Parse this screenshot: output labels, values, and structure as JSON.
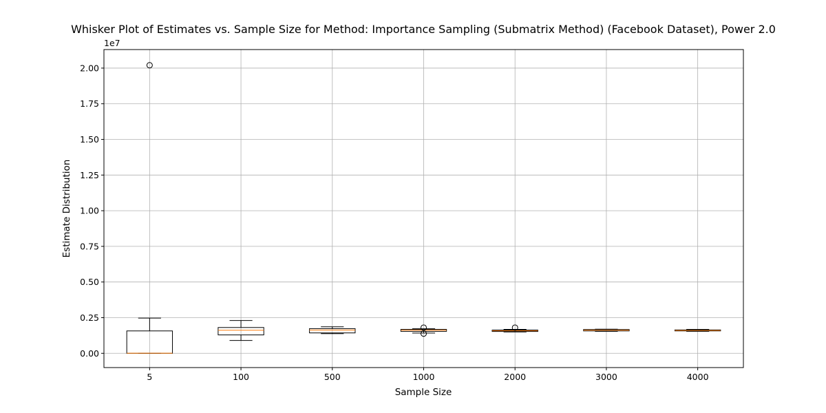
{
  "chart_data": {
    "type": "box",
    "title": "Whisker Plot of Estimates vs. Sample Size for Method: Importance Sampling (Submatrix Method) (Facebook Dataset), Power 2.0",
    "xlabel": "Sample Size",
    "ylabel": "Estimate Distribution",
    "y_offset_label": "1e7",
    "y_scale": 10000000,
    "ylim": [
      -1000000,
      21300000
    ],
    "yticks": [
      0,
      2500000,
      5000000,
      7500000,
      10000000,
      12500000,
      15000000,
      17500000,
      20000000
    ],
    "ytick_labels": [
      "0.00",
      "0.25",
      "0.50",
      "0.75",
      "1.00",
      "1.25",
      "1.50",
      "1.75",
      "2.00"
    ],
    "grid": true,
    "categories": [
      "5",
      "100",
      "500",
      "1000",
      "2000",
      "3000",
      "4000"
    ],
    "boxes": [
      {
        "whisker_low": 0,
        "q1": 0,
        "median": 10000,
        "q3": 1570000,
        "whisker_high": 2470000,
        "outliers": [
          20200000
        ]
      },
      {
        "whisker_low": 900000,
        "q1": 1290000,
        "median": 1620000,
        "q3": 1810000,
        "whisker_high": 2300000,
        "outliers": []
      },
      {
        "whisker_low": 1380000,
        "q1": 1430000,
        "median": 1630000,
        "q3": 1730000,
        "whisker_high": 1860000,
        "outliers": []
      },
      {
        "whisker_low": 1420000,
        "q1": 1540000,
        "median": 1620000,
        "q3": 1680000,
        "whisker_high": 1720000,
        "outliers": [
          1800000,
          1380000
        ]
      },
      {
        "whisker_low": 1500000,
        "q1": 1530000,
        "median": 1580000,
        "q3": 1630000,
        "whisker_high": 1680000,
        "outliers": [
          1800000
        ]
      },
      {
        "whisker_low": 1540000,
        "q1": 1570000,
        "median": 1620000,
        "q3": 1670000,
        "whisker_high": 1690000,
        "outliers": []
      },
      {
        "whisker_low": 1540000,
        "q1": 1570000,
        "median": 1600000,
        "q3": 1640000,
        "whisker_high": 1680000,
        "outliers": []
      }
    ],
    "colors": {
      "box": "#000000",
      "median": "#ff7f0e",
      "grid": "#b0b0b0"
    }
  }
}
